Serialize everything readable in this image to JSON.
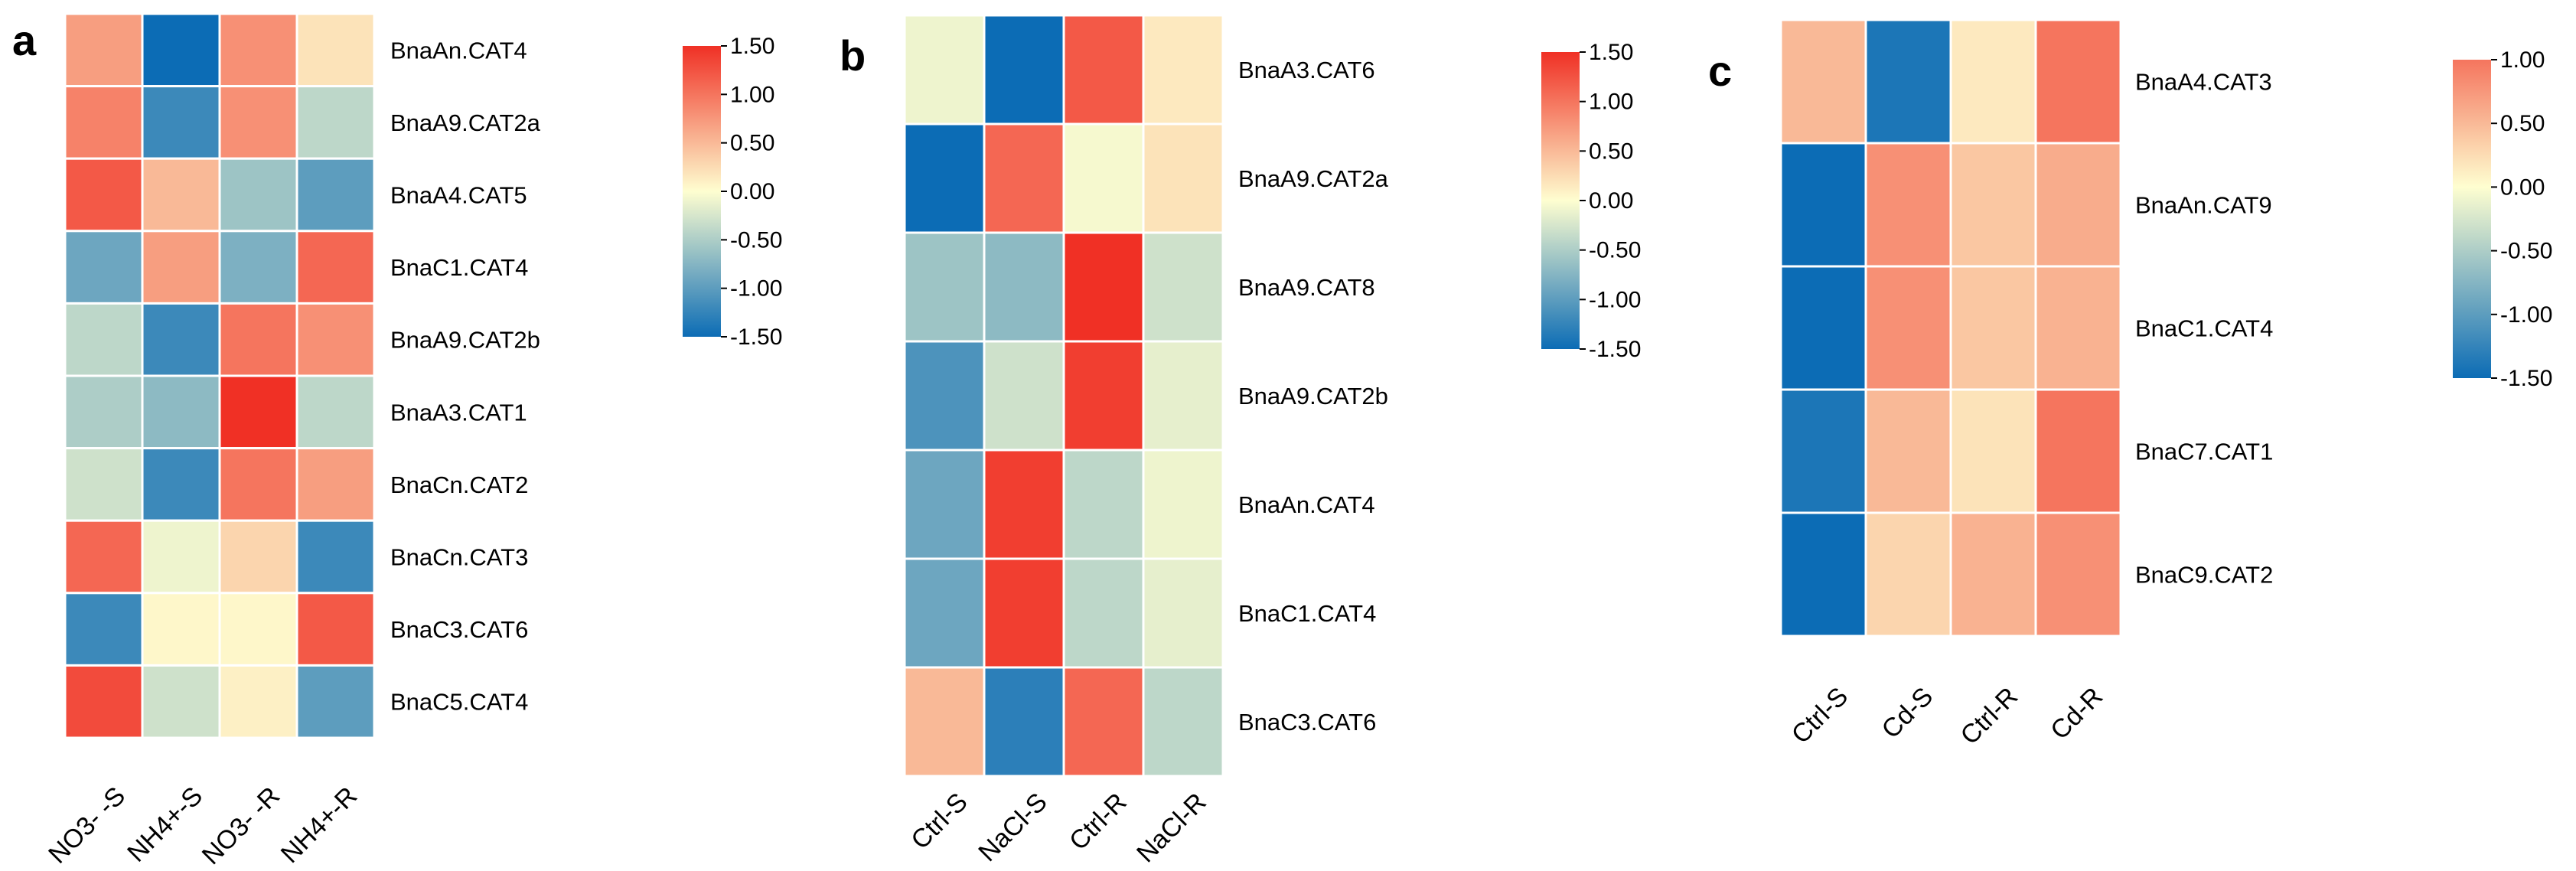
{
  "chart_data": [
    {
      "type": "heatmap",
      "panel": "a",
      "rows": [
        "BnaAn.CAT4",
        "BnaA9.CAT2a",
        "BnaA4.CAT5",
        "BnaC1.CAT4",
        "BnaA9.CAT2b",
        "BnaA3.CAT1",
        "BnaCn.CAT2",
        "BnaCn.CAT3",
        "BnaC3.CAT6",
        "BnaC5.CAT4"
      ],
      "columns": [
        "NO3- -S",
        "NH4+-S",
        "NO3- -R",
        "NH4+-R"
      ],
      "values": [
        [
          0.7,
          -1.5,
          0.8,
          0.2
        ],
        [
          0.9,
          -1.2,
          0.8,
          -0.4
        ],
        [
          1.2,
          0.5,
          -0.6,
          -1.0
        ],
        [
          -0.9,
          0.7,
          -0.8,
          1.1
        ],
        [
          -0.4,
          -1.2,
          1.0,
          0.8
        ],
        [
          -0.5,
          -0.7,
          1.5,
          -0.4
        ],
        [
          -0.3,
          -1.2,
          1.0,
          0.7
        ],
        [
          1.1,
          -0.1,
          0.3,
          -1.2
        ],
        [
          -1.2,
          0.05,
          0.05,
          1.2
        ],
        [
          1.3,
          -0.3,
          0.1,
          -1.0
        ]
      ],
      "colorbar": {
        "ticks": [
          "1.50",
          "1.00",
          "0.50",
          "0.00",
          "-0.50",
          "-1.00",
          "-1.50"
        ],
        "range": [
          -1.5,
          1.5
        ]
      },
      "colors": {
        "low": "#0c6cb5",
        "mid": "#fefed0",
        "high": "#f03025"
      }
    },
    {
      "type": "heatmap",
      "panel": "b",
      "rows": [
        "BnaA3.CAT6",
        "BnaA9.CAT2a",
        "BnaA9.CAT8",
        "BnaA9.CAT2b",
        "BnaAn.CAT4",
        "BnaC1.CAT4",
        "BnaC3.CAT6"
      ],
      "columns": [
        "Ctrl-S",
        "NaCl-S",
        "Ctrl-R",
        "NaCl-R"
      ],
      "values": [
        [
          -0.1,
          -1.5,
          1.2,
          0.15
        ],
        [
          -1.5,
          1.1,
          -0.05,
          0.2
        ],
        [
          -0.6,
          -0.7,
          1.5,
          -0.3
        ],
        [
          -1.1,
          -0.3,
          1.4,
          -0.15
        ],
        [
          -0.9,
          1.4,
          -0.4,
          -0.1
        ],
        [
          -0.9,
          1.4,
          -0.4,
          -0.15
        ],
        [
          0.5,
          -1.3,
          1.1,
          -0.4
        ]
      ],
      "colorbar": {
        "ticks": [
          "1.50",
          "1.00",
          "0.50",
          "0.00",
          "-0.50",
          "-1.00",
          "-1.50"
        ],
        "range": [
          -1.5,
          1.5
        ]
      },
      "colors": {
        "low": "#0c6cb5",
        "mid": "#fefed0",
        "high": "#f03025"
      }
    },
    {
      "type": "heatmap",
      "panel": "c",
      "rows": [
        "BnaA4.CAT3",
        "BnaAn.CAT9",
        "BnaC1.CAT4",
        "BnaC7.CAT1",
        "BnaC9.CAT2"
      ],
      "columns": [
        "Ctrl-S",
        "Cd-S",
        "Ctrl-R",
        "Cd-R"
      ],
      "values": [
        [
          0.5,
          -1.4,
          0.15,
          1.0
        ],
        [
          -1.5,
          0.8,
          0.4,
          0.6
        ],
        [
          -1.5,
          0.8,
          0.4,
          0.55
        ],
        [
          -1.4,
          0.5,
          0.2,
          1.0
        ],
        [
          -1.5,
          0.3,
          0.55,
          0.8
        ]
      ],
      "colorbar": {
        "ticks": [
          "1.00",
          "0.50",
          "0.00",
          "-0.50",
          "-1.00",
          "-1.50"
        ],
        "range": [
          -1.5,
          1.0
        ]
      },
      "colors": {
        "low": "#0c6cb5",
        "mid": "#fefed0",
        "high": "#f03025"
      }
    }
  ]
}
